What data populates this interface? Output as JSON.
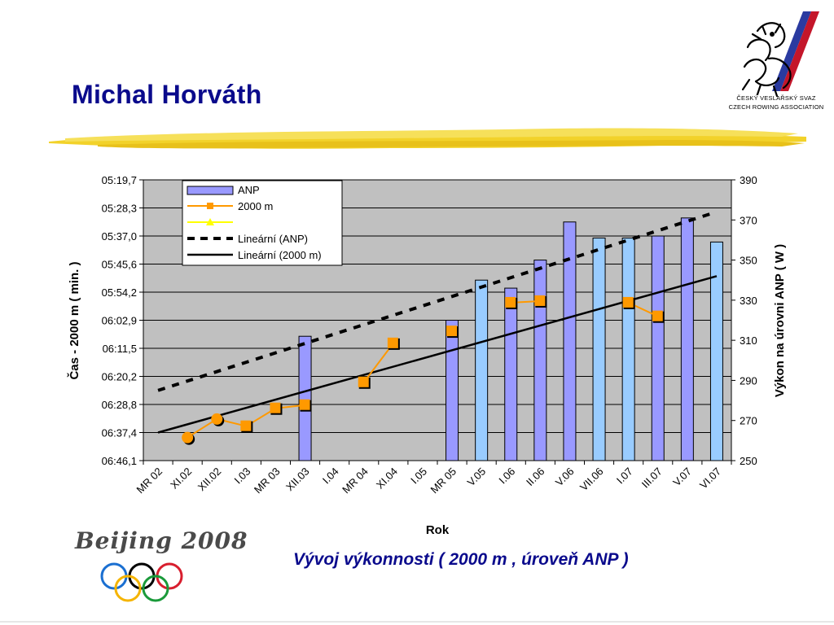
{
  "slide": {
    "title": "Michal Horváth",
    "caption": "Vývoj výkonnosti ( 2000 m , úroveň ANP )"
  },
  "logo": {
    "line1": "ČESKÝ VESLAŘSKÝ SVAZ",
    "line2": "CZECH ROWING ASSOCIATION"
  },
  "olympic_logo": {
    "text": "Beijing 2008"
  },
  "colors": {
    "title": "#0a0a8c",
    "plot_background": "#c0c0c0",
    "bar_dark": "#9999ff",
    "bar_light": "#99ccff",
    "line_2000m": "#ff9900",
    "line_2000m_marker": "#ff9900",
    "trend_anp": "#000000",
    "trend_2000m": "#000000",
    "brush": "#f2d22a"
  },
  "chart_data": {
    "type": "bar",
    "categories": [
      "MR 02",
      "XI.02",
      "XII.02",
      "I.03",
      "MR 03",
      "XII.03",
      "I.04",
      "MR 04",
      "XI.04",
      "I.05",
      "MR 05",
      "V.05",
      "I.06",
      "II.06",
      "V.06",
      "VII.06",
      "I.07",
      "III.07",
      "V.07",
      "VI.07"
    ],
    "xlabel": "Rok",
    "ylabel_left": "Čas - 2000 m ( min. )",
    "ylabel_right": "Výkon na úrovni ANP ( W )",
    "left_axis_ticks": [
      "05:19,7",
      "05:28,3",
      "05:37,0",
      "05:45,6",
      "05:54,2",
      "06:02,9",
      "06:11,5",
      "06:20,2",
      "06:28,8",
      "06:37,4",
      "06:46,1"
    ],
    "right_axis_ticks": [
      "390",
      "370",
      "350",
      "330",
      "310",
      "290",
      "270",
      "250"
    ],
    "right_ylim": [
      250,
      390
    ],
    "left_axis_inverted": true,
    "grid": true,
    "legend_position": "top-left",
    "legend": [
      "ANP",
      "2000 m",
      "",
      "Lineární (ANP)",
      "Lineární (2000 m)"
    ],
    "series": [
      {
        "name": "ANP",
        "kind": "bar",
        "axis": "right",
        "values": [
          null,
          null,
          null,
          null,
          null,
          312,
          null,
          null,
          null,
          null,
          320,
          340,
          336,
          350,
          369,
          361,
          361,
          362,
          371,
          359
        ],
        "shade": [
          "",
          "",
          "",
          "",
          "",
          "dark",
          "",
          "",
          "",
          "",
          "dark",
          "light",
          "dark",
          "dark",
          "dark",
          "light",
          "light",
          "dark",
          "dark",
          "light"
        ]
      },
      {
        "name": "2000 m",
        "kind": "line",
        "axis": "left",
        "values": [
          "",
          "06:39,0",
          "06:33,3",
          "06:35,5",
          "06:30,0",
          "06:29,0",
          "",
          "06:22,0",
          "06:10,0",
          "",
          "06:06,3",
          "",
          "05:57,5",
          "05:57,0",
          "",
          "",
          "05:57,5",
          "06:01,7",
          "",
          ""
        ]
      },
      {
        "name": "Lineární (ANP)",
        "kind": "dashed-trend",
        "axis": "right",
        "from": 285,
        "to": 373
      },
      {
        "name": "Lineární (2000 m)",
        "kind": "solid-trend",
        "axis": "right",
        "from": 264,
        "to": 342
      }
    ]
  }
}
